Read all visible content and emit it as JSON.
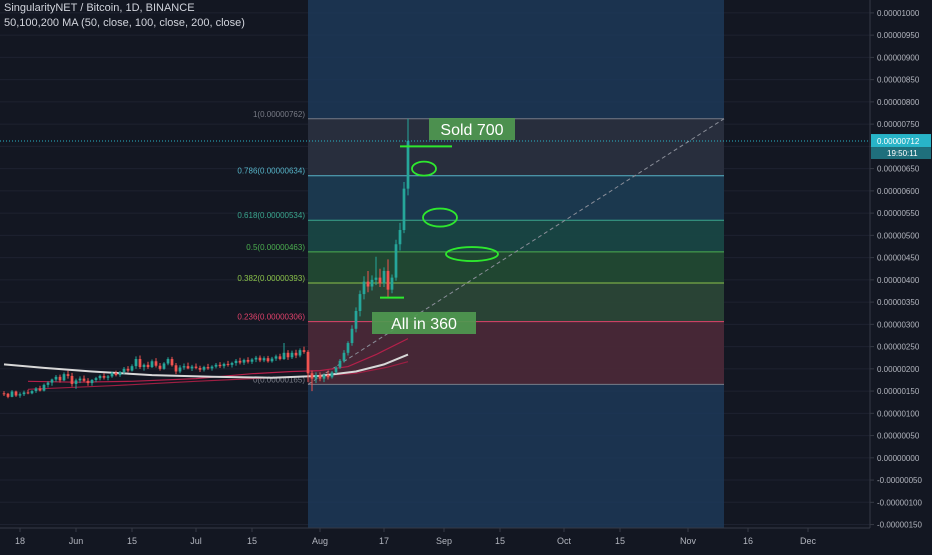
{
  "header": {
    "title": "SingularityNET / Bitcoin, 1D, BINANCE",
    "indicator": "50,100,200 MA (50, close, 100, close, 200, close)"
  },
  "price_label": {
    "value": "0.00000712",
    "countdown": "19:50:11",
    "price": 7.12e-06
  },
  "annotations": {
    "sold": "Sold 700",
    "buy": "All in 360",
    "sold_price": 7e-06,
    "buy_price": 3.6e-06
  },
  "colors": {
    "background": "#131722",
    "candle_up": "#26a69a",
    "candle_down": "#ef5350",
    "ma_white": "#d8d8d8",
    "ma_red": "#b4204a",
    "annotation_green": "#4f9950",
    "marker_green": "#2ee82e",
    "price_line": "#28b4c8"
  },
  "chart_data": {
    "type": "candlestick",
    "symbol": "SingularityNET / Bitcoin",
    "interval": "1D",
    "exchange": "BINANCE",
    "y_axis": {
      "ticks": [
        "0.00001000",
        "0.00000950",
        "0.00000900",
        "0.00000850",
        "0.00000800",
        "0.00000750",
        "0.00000700",
        "0.00000650",
        "0.00000600",
        "0.00000550",
        "0.00000500",
        "0.00000450",
        "0.00000400",
        "0.00000350",
        "0.00000300",
        "0.00000250",
        "0.00000200",
        "0.00000150",
        "0.00000100",
        "0.00000050",
        "0.00000000",
        "-0.00000050",
        "-0.00000100",
        "-0.00000150"
      ],
      "range": [
        -1.6e-06,
        1.02e-05
      ]
    },
    "x_axis": {
      "ticks": [
        "18",
        "Jun",
        "15",
        "Jul",
        "15",
        "Aug",
        "17",
        "Sep",
        "15",
        "Oct",
        "15",
        "Nov",
        "16",
        "Dec"
      ],
      "range": [
        "2019-05-14",
        "2019-12-12"
      ]
    },
    "candles": [
      [
        "2019-05-14",
        1.45e-06,
        1.5e-06,
        1.39e-06,
        1.44e-06
      ],
      [
        "2019-05-15",
        1.44e-06,
        1.46e-06,
        1.34e-06,
        1.37e-06
      ],
      [
        "2019-05-16",
        1.37e-06,
        1.52e-06,
        1.36e-06,
        1.49e-06
      ],
      [
        "2019-05-17",
        1.49e-06,
        1.51e-06,
        1.37e-06,
        1.4e-06
      ],
      [
        "2019-05-18",
        1.4e-06,
        1.47e-06,
        1.35e-06,
        1.43e-06
      ],
      [
        "2019-05-19",
        1.43e-06,
        1.51e-06,
        1.39e-06,
        1.47e-06
      ],
      [
        "2019-05-20",
        1.47e-06,
        1.53e-06,
        1.43e-06,
        1.45e-06
      ],
      [
        "2019-05-21",
        1.45e-06,
        1.52e-06,
        1.43e-06,
        1.5e-06
      ],
      [
        "2019-05-22",
        1.5e-06,
        1.59e-06,
        1.46e-06,
        1.56e-06
      ],
      [
        "2019-05-23",
        1.56e-06,
        1.62e-06,
        1.49e-06,
        1.51e-06
      ],
      [
        "2019-05-24",
        1.51e-06,
        1.67e-06,
        1.49e-06,
        1.64e-06
      ],
      [
        "2019-05-25",
        1.64e-06,
        1.72e-06,
        1.58e-06,
        1.69e-06
      ],
      [
        "2019-05-26",
        1.69e-06,
        1.78e-06,
        1.62e-06,
        1.76e-06
      ],
      [
        "2019-05-27",
        1.76e-06,
        1.86e-06,
        1.71e-06,
        1.82e-06
      ],
      [
        "2019-05-28",
        1.82e-06,
        1.87e-06,
        1.69e-06,
        1.74e-06
      ],
      [
        "2019-05-29",
        1.74e-06,
        1.92e-06,
        1.72e-06,
        1.88e-06
      ],
      [
        "2019-05-30",
        1.88e-06,
        1.96e-06,
        1.78e-06,
        1.84e-06
      ],
      [
        "2019-05-31",
        1.84e-06,
        1.91e-06,
        1.6e-06,
        1.66e-06
      ],
      [
        "2019-06-01",
        1.66e-06,
        1.78e-06,
        1.55e-06,
        1.74e-06
      ],
      [
        "2019-06-02",
        1.74e-06,
        1.83e-06,
        1.68e-06,
        1.78e-06
      ],
      [
        "2019-06-03",
        1.78e-06,
        1.85e-06,
        1.7e-06,
        1.73e-06
      ],
      [
        "2019-06-04",
        1.73e-06,
        1.79e-06,
        1.62e-06,
        1.68e-06
      ],
      [
        "2019-06-05",
        1.68e-06,
        1.77e-06,
        1.62e-06,
        1.75e-06
      ],
      [
        "2019-06-06",
        1.75e-06,
        1.82e-06,
        1.7e-06,
        1.79e-06
      ],
      [
        "2019-06-07",
        1.79e-06,
        1.87e-06,
        1.74e-06,
        1.84e-06
      ],
      [
        "2019-06-08",
        1.84e-06,
        1.9e-06,
        1.76e-06,
        1.8e-06
      ],
      [
        "2019-06-09",
        1.8e-06,
        1.86e-06,
        1.74e-06,
        1.83e-06
      ],
      [
        "2019-06-10",
        1.83e-06,
        1.94e-06,
        1.8e-06,
        1.91e-06
      ],
      [
        "2019-06-11",
        1.91e-06,
        1.96e-06,
        1.83e-06,
        1.86e-06
      ],
      [
        "2019-06-12",
        1.86e-06,
        1.95e-06,
        1.82e-06,
        1.93e-06
      ],
      [
        "2019-06-13",
        1.93e-06,
        2.04e-06,
        1.88e-06,
        2e-06
      ],
      [
        "2019-06-14",
        2e-06,
        2.06e-06,
        1.92e-06,
        1.96e-06
      ],
      [
        "2019-06-15",
        1.96e-06,
        2.1e-06,
        1.94e-06,
        2.06e-06
      ],
      [
        "2019-06-16",
        2.06e-06,
        2.28e-06,
        2e-06,
        2.22e-06
      ],
      [
        "2019-06-17",
        2.22e-06,
        2.3e-06,
        2e-06,
        2.04e-06
      ],
      [
        "2019-06-18",
        2.04e-06,
        2.12e-06,
        1.96e-06,
        2.09e-06
      ],
      [
        "2019-06-19",
        2.09e-06,
        2.16e-06,
        2e-06,
        2.04e-06
      ],
      [
        "2019-06-20",
        2.04e-06,
        2.21e-06,
        2.02e-06,
        2.17e-06
      ],
      [
        "2019-06-21",
        2.17e-06,
        2.24e-06,
        2.03e-06,
        2.07e-06
      ],
      [
        "2019-06-22",
        2.07e-06,
        2.13e-06,
        1.96e-06,
        2e-06
      ],
      [
        "2019-06-23",
        2e-06,
        2.15e-06,
        1.98e-06,
        2.12e-06
      ],
      [
        "2019-06-24",
        2.12e-06,
        2.26e-06,
        2.08e-06,
        2.22e-06
      ],
      [
        "2019-06-25",
        2.22e-06,
        2.27e-06,
        2.05e-06,
        2.08e-06
      ],
      [
        "2019-06-26",
        2.08e-06,
        2.13e-06,
        1.88e-06,
        1.94e-06
      ],
      [
        "2019-06-27",
        1.94e-06,
        2.08e-06,
        1.9e-06,
        2.03e-06
      ],
      [
        "2019-06-28",
        2.03e-06,
        2.12e-06,
        1.98e-06,
        2.06e-06
      ],
      [
        "2019-06-29",
        2.06e-06,
        2.14e-06,
        1.99e-06,
        2.01e-06
      ],
      [
        "2019-06-30",
        2.01e-06,
        2.09e-06,
        1.95e-06,
        2.05e-06
      ],
      [
        "2019-07-01",
        2.05e-06,
        2.12e-06,
        1.99e-06,
        2.02e-06
      ],
      [
        "2019-07-02",
        2.02e-06,
        2.07e-06,
        1.93e-06,
        1.98e-06
      ],
      [
        "2019-07-03",
        1.98e-06,
        2.07e-06,
        1.94e-06,
        2.04e-06
      ],
      [
        "2019-07-04",
        2.04e-06,
        2.11e-06,
        1.98e-06,
        2.01e-06
      ],
      [
        "2019-07-05",
        2.01e-06,
        2.08e-06,
        1.96e-06,
        2.05e-06
      ],
      [
        "2019-07-06",
        2.05e-06,
        2.13e-06,
        2.01e-06,
        2.09e-06
      ],
      [
        "2019-07-07",
        2.09e-06,
        2.15e-06,
        2.02e-06,
        2.06e-06
      ],
      [
        "2019-07-08",
        2.06e-06,
        2.14e-06,
        2.01e-06,
        2.11e-06
      ],
      [
        "2019-07-09",
        2.11e-06,
        2.18e-06,
        2.05e-06,
        2.09e-06
      ],
      [
        "2019-07-10",
        2.09e-06,
        2.16e-06,
        2.03e-06,
        2.13e-06
      ],
      [
        "2019-07-11",
        2.13e-06,
        2.22e-06,
        2.07e-06,
        2.18e-06
      ],
      [
        "2019-07-12",
        2.18e-06,
        2.25e-06,
        2.1e-06,
        2.14e-06
      ],
      [
        "2019-07-13",
        2.14e-06,
        2.23e-06,
        2.09e-06,
        2.2e-06
      ],
      [
        "2019-07-14",
        2.2e-06,
        2.26e-06,
        2.12e-06,
        2.16e-06
      ],
      [
        "2019-07-15",
        2.16e-06,
        2.24e-06,
        2.11e-06,
        2.21e-06
      ],
      [
        "2019-07-16",
        2.21e-06,
        2.29e-06,
        2.15e-06,
        2.25e-06
      ],
      [
        "2019-07-17",
        2.25e-06,
        2.3e-06,
        2.15e-06,
        2.19e-06
      ],
      [
        "2019-07-18",
        2.19e-06,
        2.28e-06,
        2.15e-06,
        2.24e-06
      ],
      [
        "2019-07-19",
        2.24e-06,
        2.29e-06,
        2.14e-06,
        2.17e-06
      ],
      [
        "2019-07-20",
        2.17e-06,
        2.27e-06,
        2.14e-06,
        2.23e-06
      ],
      [
        "2019-07-21",
        2.23e-06,
        2.32e-06,
        2.18e-06,
        2.28e-06
      ],
      [
        "2019-07-22",
        2.28e-06,
        2.34e-06,
        2.19e-06,
        2.22e-06
      ],
      [
        "2019-07-23",
        2.22e-06,
        2.58e-06,
        2.2e-06,
        2.36e-06
      ],
      [
        "2019-07-24",
        2.36e-06,
        2.42e-06,
        2.2e-06,
        2.26e-06
      ],
      [
        "2019-07-25",
        2.26e-06,
        2.41e-06,
        2.22e-06,
        2.36e-06
      ],
      [
        "2019-07-26",
        2.36e-06,
        2.43e-06,
        2.24e-06,
        2.3e-06
      ],
      [
        "2019-07-27",
        2.3e-06,
        2.46e-06,
        2.26e-06,
        2.42e-06
      ],
      [
        "2019-07-28",
        2.42e-06,
        2.5e-06,
        2.34e-06,
        2.38e-06
      ],
      [
        "2019-07-29",
        2.38e-06,
        2.42e-06,
        1.7e-06,
        1.9e-06
      ],
      [
        "2019-07-30",
        1.9e-06,
        1.96e-06,
        1.5e-06,
        1.78e-06
      ],
      [
        "2019-07-31",
        1.78e-06,
        1.92e-06,
        1.68e-06,
        1.86e-06
      ],
      [
        "2019-08-01",
        1.86e-06,
        1.92e-06,
        1.72e-06,
        1.78e-06
      ],
      [
        "2019-08-02",
        1.78e-06,
        1.9e-06,
        1.7e-06,
        1.86e-06
      ],
      [
        "2019-08-03",
        1.86e-06,
        1.96e-06,
        1.76e-06,
        1.81e-06
      ],
      [
        "2019-08-04",
        1.81e-06,
        1.95e-06,
        1.78e-06,
        1.92e-06
      ],
      [
        "2019-08-05",
        1.92e-06,
        2.06e-06,
        1.89e-06,
        2.03e-06
      ],
      [
        "2019-08-06",
        2.03e-06,
        2.22e-06,
        2e-06,
        2.18e-06
      ],
      [
        "2019-08-07",
        2.18e-06,
        2.42e-06,
        2.14e-06,
        2.36e-06
      ],
      [
        "2019-08-08",
        2.36e-06,
        2.62e-06,
        2.3e-06,
        2.58e-06
      ],
      [
        "2019-08-09",
        2.58e-06,
        2.98e-06,
        2.52e-06,
        2.9e-06
      ],
      [
        "2019-08-10",
        2.9e-06,
        3.38e-06,
        2.82e-06,
        3.3e-06
      ],
      [
        "2019-08-11",
        3.3e-06,
        3.76e-06,
        3.18e-06,
        3.68e-06
      ],
      [
        "2019-08-12",
        3.68e-06,
        4.08e-06,
        3.56e-06,
        3.96e-06
      ],
      [
        "2019-08-13",
        3.96e-06,
        4.2e-06,
        3.72e-06,
        3.85e-06
      ],
      [
        "2019-08-14",
        3.85e-06,
        4.1e-06,
        3.76e-06,
        4e-06
      ],
      [
        "2019-08-15",
        4e-06,
        4.52e-06,
        3.88e-06,
        4.05e-06
      ],
      [
        "2019-08-16",
        4.05e-06,
        4.25e-06,
        3.84e-06,
        3.92e-06
      ],
      [
        "2019-08-17",
        3.92e-06,
        4.28e-06,
        3.84e-06,
        4.2e-06
      ],
      [
        "2019-08-18",
        4.2e-06,
        4.46e-06,
        3.6e-06,
        3.78e-06
      ],
      [
        "2019-08-19",
        3.78e-06,
        4.12e-06,
        3.7e-06,
        4.05e-06
      ],
      [
        "2019-08-20",
        4.05e-06,
        4.9e-06,
        3.98e-06,
        4.8e-06
      ],
      [
        "2019-08-21",
        4.8e-06,
        5.28e-06,
        4.66e-06,
        5.12e-06
      ],
      [
        "2019-08-22",
        5.12e-06,
        6.2e-06,
        5.05e-06,
        6.05e-06
      ],
      [
        "2019-08-23",
        6.05e-06,
        7.62e-06,
        5.9e-06,
        7.12e-06
      ]
    ],
    "moving_averages": [
      {
        "name": "MA 50",
        "color": "#b4204a",
        "points": [
          [
            "2019-05-20",
            1.72e-06
          ],
          [
            "2019-06-01",
            1.7e-06
          ],
          [
            "2019-06-15",
            1.72e-06
          ],
          [
            "2019-07-01",
            1.78e-06
          ],
          [
            "2019-07-15",
            1.89e-06
          ],
          [
            "2019-07-25",
            1.94e-06
          ],
          [
            "2019-08-01",
            1.96e-06
          ],
          [
            "2019-08-08",
            2.05e-06
          ],
          [
            "2019-08-15",
            2.32e-06
          ],
          [
            "2019-08-23",
            2.68e-06
          ]
        ]
      },
      {
        "name": "MA 100",
        "color": "#9e1f43",
        "points": [
          [
            "2019-05-20",
            1.54e-06
          ],
          [
            "2019-06-10",
            1.62e-06
          ],
          [
            "2019-07-01",
            1.72e-06
          ],
          [
            "2019-07-20",
            1.8e-06
          ],
          [
            "2019-08-01",
            1.84e-06
          ],
          [
            "2019-08-10",
            1.9e-06
          ],
          [
            "2019-08-18",
            2.04e-06
          ],
          [
            "2019-08-23",
            2.16e-06
          ]
        ]
      },
      {
        "name": "MA 200",
        "color": "#d8d8d8",
        "points": [
          [
            "2019-05-14",
            2.1e-06
          ],
          [
            "2019-05-24",
            2.02e-06
          ],
          [
            "2019-06-05",
            1.94e-06
          ],
          [
            "2019-06-20",
            1.86e-06
          ],
          [
            "2019-07-05",
            1.82e-06
          ],
          [
            "2019-07-20",
            1.8e-06
          ],
          [
            "2019-08-01",
            1.84e-06
          ],
          [
            "2019-08-10",
            1.94e-06
          ],
          [
            "2019-08-17",
            2.1e-06
          ],
          [
            "2019-08-23",
            2.32e-06
          ]
        ]
      }
    ],
    "fibonacci": {
      "start_date": "2019-07-29",
      "end_date": "2019-11-10",
      "levels": [
        {
          "ratio": "1",
          "label": "1(0.00000762)",
          "price": 7.62e-06,
          "color": "#787b86",
          "fill": "#2a2e39"
        },
        {
          "ratio": "0.786",
          "label": "0.786(0.00000634)",
          "price": 6.34e-06,
          "color": "#56b4c8",
          "fill": "#1b3a4d"
        },
        {
          "ratio": "0.618",
          "label": "0.618(0.00000534)",
          "price": 5.34e-06,
          "color": "#3aa68e",
          "fill": "#17463f"
        },
        {
          "ratio": "0.5",
          "label": "0.5(0.00000463)",
          "price": 4.63e-06,
          "color": "#4caf50",
          "fill": "#214a2c"
        },
        {
          "ratio": "0.382",
          "label": "0.382(0.00000393)",
          "price": 3.93e-06,
          "color": "#8bc34a",
          "fill": "#2b4630"
        },
        {
          "ratio": "0.236",
          "label": "0.236(0.00000306)",
          "price": 3.06e-06,
          "color": "#e0426b",
          "fill": "#4d2631"
        },
        {
          "ratio": "0",
          "label": "0(0.00000165)",
          "price": 1.65e-06,
          "color": "#787b86"
        }
      ],
      "trend_line": {
        "from": [
          "2019-07-29",
          1.65e-06
        ],
        "to": [
          "2019-11-10",
          7.62e-06
        ]
      }
    },
    "highlight_band": {
      "start_date": "2019-07-29",
      "end_date": "2019-11-10"
    },
    "horizontal_markers": [
      {
        "name": "sell-marker",
        "date_from": "2019-08-21",
        "date_to": "2019-09-03",
        "price": 7e-06
      },
      {
        "name": "buy-marker",
        "date_from": "2019-08-16",
        "date_to": "2019-08-22",
        "price": 3.6e-06
      }
    ],
    "target_circles": [
      {
        "date": "2019-08-27",
        "price": 6.5e-06
      },
      {
        "date": "2019-08-31",
        "price": 5.4e-06
      },
      {
        "date": "2019-09-08",
        "price": 4.58e-06
      }
    ]
  }
}
